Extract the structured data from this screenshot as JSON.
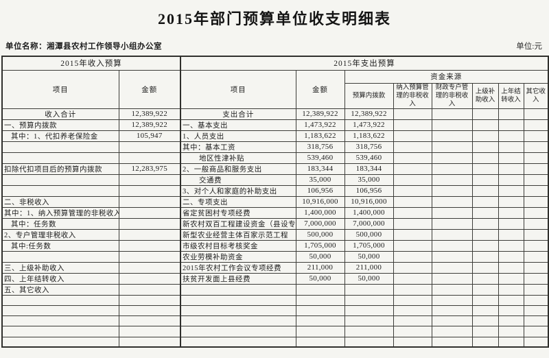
{
  "page": {
    "title": "2015年部门预算单位收支明细表",
    "unit_name_label": "单位名称：",
    "unit_name": "湘潭县农村工作领导小组办公室",
    "unit_label": "单位:元"
  },
  "table": {
    "income_header": "2015年收入预算",
    "expense_header": "2015年支出预算",
    "col_item": "项目",
    "col_amount": "金额",
    "funding_header": "资金来源",
    "funding_columns": [
      "预算内拨款",
      "纳入预算管理的非税收入",
      "财政专户管理的非税收入",
      "上级补助收入",
      "上年结转收入",
      "其它收入"
    ],
    "rows": [
      {
        "income": {
          "item": "收入合计",
          "amount": "12,389,922",
          "align": "center"
        },
        "expense": {
          "item": "支出合计",
          "amount": "12,389,922",
          "align": "center"
        },
        "funding": {
          "budget_allocation": "12,389,922"
        }
      },
      {
        "income": {
          "item": "一、预算内拨款",
          "amount": "12,389,922"
        },
        "expense": {
          "item": "一、基本支出",
          "amount": "1,473,922"
        },
        "funding": {
          "budget_allocation": "1,473,922"
        }
      },
      {
        "income": {
          "item": "其中：1、代扣养老保险金",
          "amount": "105,947",
          "indent": 1
        },
        "expense": {
          "item": "1、人员支出",
          "amount": "1,183,622"
        },
        "funding": {
          "budget_allocation": "1,183,622"
        }
      },
      {
        "income": {},
        "expense": {
          "item": "其中：基本工资",
          "amount": "318,756"
        },
        "funding": {
          "budget_allocation": "318,756"
        }
      },
      {
        "income": {},
        "expense": {
          "item": "地区性津补贴",
          "amount": "539,460",
          "indent": 2
        },
        "funding": {
          "budget_allocation": "539,460"
        }
      },
      {
        "income": {
          "item": "扣除代扣项目后的预算内拨款",
          "amount": "12,283,975"
        },
        "expense": {
          "item": "2、一般商品和服务支出",
          "amount": "183,344"
        },
        "funding": {
          "budget_allocation": "183,344"
        }
      },
      {
        "income": {},
        "expense": {
          "item": "交通费",
          "amount": "35,000",
          "indent": 2
        },
        "funding": {
          "budget_allocation": "35,000"
        }
      },
      {
        "income": {},
        "expense": {
          "item": "3、对个人和家庭的补助支出",
          "amount": "106,956"
        },
        "funding": {
          "budget_allocation": "106,956"
        }
      },
      {
        "income": {
          "item": "二、非税收入"
        },
        "expense": {
          "item": "二、专项支出",
          "amount": "10,916,000"
        },
        "funding": {
          "budget_allocation": "10,916,000"
        }
      },
      {
        "income": {
          "item": "其中：1、纳入预算管理的非税收入"
        },
        "expense": {
          "item": "省定贫困村专项经费",
          "amount": "1,400,000"
        },
        "funding": {
          "budget_allocation": "1,400,000"
        }
      },
      {
        "income": {
          "item": "其中：任务数",
          "indent": 1
        },
        "expense": {
          "item": "新农村双百工程建设资金（县设专项）",
          "amount": "7,000,000"
        },
        "funding": {
          "budget_allocation": "7,000,000"
        }
      },
      {
        "income": {
          "item": "2、专户管理非税收入"
        },
        "expense": {
          "item": "新型农业经营主体百家示范工程",
          "amount": "500,000"
        },
        "funding": {
          "budget_allocation": "500,000"
        }
      },
      {
        "income": {
          "item": "其中:任务数",
          "indent": 1
        },
        "expense": {
          "item": "市级农村目标考核奖金",
          "amount": "1,705,000"
        },
        "funding": {
          "budget_allocation": "1,705,000"
        }
      },
      {
        "income": {},
        "expense": {
          "item": "农业劳模补助资金",
          "amount": "50,000"
        },
        "funding": {
          "budget_allocation": "50,000"
        }
      },
      {
        "income": {
          "item": "三、上级补助收入"
        },
        "expense": {
          "item": "2015年农村工作会议专项经费",
          "amount": "211,000"
        },
        "funding": {
          "budget_allocation": "211,000"
        }
      },
      {
        "income": {
          "item": "四、上年结转收入"
        },
        "expense": {
          "item": "扶贫开发面上县经费",
          "amount": "50,000"
        },
        "funding": {
          "budget_allocation": "50,000"
        }
      },
      {
        "income": {
          "item": "五、其它收入"
        },
        "expense": {},
        "funding": {}
      },
      {
        "income": {},
        "expense": {},
        "funding": {}
      },
      {
        "income": {},
        "expense": {},
        "funding": {}
      },
      {
        "income": {},
        "expense": {},
        "funding": {}
      },
      {
        "income": {},
        "expense": {},
        "funding": {}
      },
      {
        "income": {},
        "expense": {},
        "funding": {}
      }
    ]
  }
}
